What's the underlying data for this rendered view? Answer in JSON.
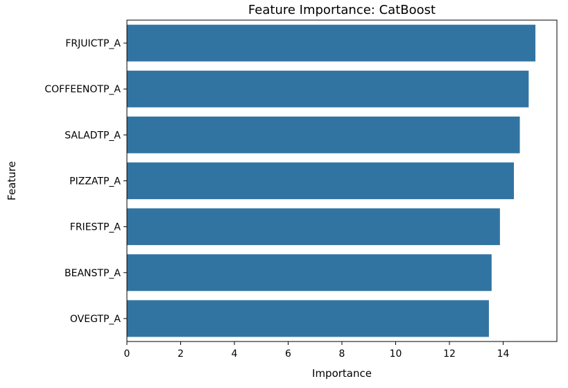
{
  "chart_data": {
    "type": "bar",
    "orientation": "horizontal",
    "title": "Feature Importance: CatBoost",
    "xlabel": "Importance",
    "ylabel": "Feature",
    "categories": [
      "FRJUICTP_A",
      "COFFEENOTP_A",
      "SALADTP_A",
      "PIZZATP_A",
      "FRIESTP_A",
      "BEANSTP_A",
      "OVEGTP_A"
    ],
    "values": [
      15.2,
      14.95,
      14.62,
      14.4,
      13.88,
      13.57,
      13.47
    ],
    "xlim": [
      0,
      16
    ],
    "xticks": [
      0,
      2,
      4,
      6,
      8,
      10,
      12,
      14
    ],
    "xtick_labels": [
      "0",
      "2",
      "4",
      "6",
      "8",
      "10",
      "12",
      "14"
    ],
    "bar_color": "#3274a1",
    "grid": false
  }
}
